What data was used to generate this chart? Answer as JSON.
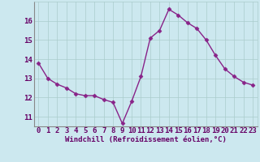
{
  "x": [
    0,
    1,
    2,
    3,
    4,
    5,
    6,
    7,
    8,
    9,
    10,
    11,
    12,
    13,
    14,
    15,
    16,
    17,
    18,
    19,
    20,
    21,
    22,
    23
  ],
  "y": [
    13.8,
    13.0,
    12.7,
    12.5,
    12.2,
    12.1,
    12.1,
    11.9,
    11.75,
    10.65,
    11.8,
    13.1,
    15.1,
    15.5,
    16.6,
    16.3,
    15.9,
    15.6,
    15.0,
    14.2,
    13.5,
    13.1,
    12.8,
    12.65
  ],
  "line_color": "#882288",
  "marker": "D",
  "markersize": 2.5,
  "linewidth": 1.0,
  "bg_color": "#cce8ef",
  "grid_color": "#aacccc",
  "xlabel": "Windchill (Refroidissement éolien,°C)",
  "xlabel_fontsize": 6.5,
  "tick_fontsize": 6.5,
  "ylim": [
    10.5,
    17.0
  ],
  "xlim": [
    -0.5,
    23.5
  ],
  "yticks": [
    11,
    12,
    13,
    14,
    15,
    16
  ],
  "xticks": [
    0,
    1,
    2,
    3,
    4,
    5,
    6,
    7,
    8,
    9,
    10,
    11,
    12,
    13,
    14,
    15,
    16,
    17,
    18,
    19,
    20,
    21,
    22,
    23
  ],
  "spine_color": "#888888"
}
